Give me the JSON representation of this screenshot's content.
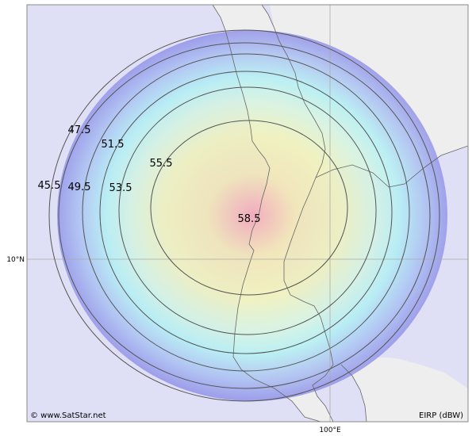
{
  "map": {
    "credit": "© www.SatStar.net",
    "legend_label": "EIRP (dBW)",
    "lat_label": "10°N",
    "lon_label": "100°E",
    "colors": {
      "sea": "#dfdff5",
      "land": "#eeeeee",
      "frame": "#888888",
      "contour": "#555555",
      "coast": "#666666",
      "grid": "#aaaaaa"
    }
  },
  "contours": [
    {
      "value": 45.5,
      "label": "45.5"
    },
    {
      "value": 47.5,
      "label": "47.5"
    },
    {
      "value": 49.5,
      "label": "49.5"
    },
    {
      "value": 51.5,
      "label": "51.5"
    },
    {
      "value": 53.5,
      "label": "53.5"
    },
    {
      "value": 55.5,
      "label": "55.5"
    },
    {
      "value": 58.5,
      "label": "58.5"
    }
  ]
}
